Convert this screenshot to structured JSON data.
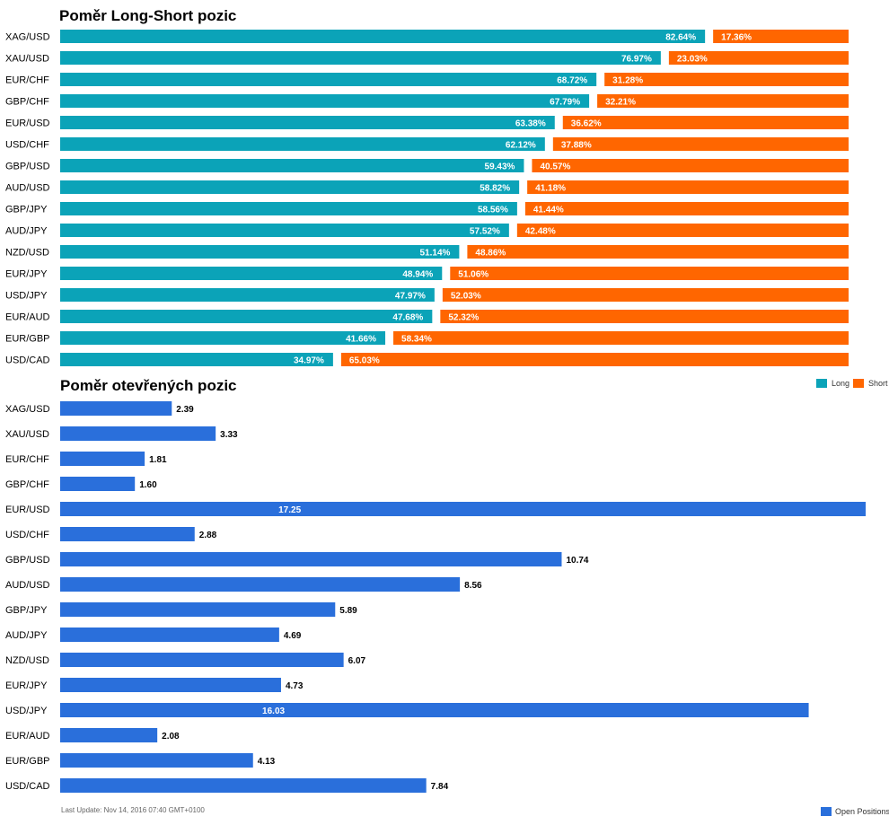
{
  "colors": {
    "long": "#0BA3B8",
    "short": "#FF6600",
    "open": "#2A6FDB"
  },
  "footer": "Last Update: Nov 14, 2016 07:40 GMT+0100",
  "chart_data": [
    {
      "type": "bar",
      "orientation": "horizontal",
      "stacked": true,
      "title": "Poměr Long-Short pozic",
      "categories": [
        "XAG/USD",
        "XAU/USD",
        "EUR/CHF",
        "GBP/CHF",
        "EUR/USD",
        "USD/CHF",
        "GBP/USD",
        "AUD/USD",
        "GBP/JPY",
        "AUD/JPY",
        "NZD/USD",
        "EUR/JPY",
        "USD/JPY",
        "EUR/AUD",
        "EUR/GBP",
        "USD/CAD"
      ],
      "series": [
        {
          "name": "Long",
          "values": [
            82.64,
            76.97,
            68.72,
            67.79,
            63.38,
            62.12,
            59.43,
            58.82,
            58.56,
            57.52,
            51.14,
            48.94,
            47.97,
            47.68,
            41.66,
            34.97
          ],
          "labels": [
            "82.64%",
            "76.97%",
            "68.72%",
            "67.79%",
            "63.38%",
            "62.12%",
            "59.43%",
            "58.82%",
            "58.56%",
            "57.52%",
            "51.14%",
            "48.94%",
            "47.97%",
            "47.68%",
            "41.66%",
            "34.97%"
          ]
        },
        {
          "name": "Short",
          "values": [
            17.36,
            23.03,
            31.28,
            32.21,
            36.62,
            37.88,
            40.57,
            41.18,
            41.44,
            42.48,
            48.86,
            51.06,
            52.03,
            52.32,
            58.34,
            65.03
          ],
          "labels": [
            "17.36%",
            "23.03%",
            "31.28%",
            "32.21%",
            "36.62%",
            "37.88%",
            "40.57%",
            "41.18%",
            "41.44%",
            "42.48%",
            "48.86%",
            "51.06%",
            "52.03%",
            "52.32%",
            "58.34%",
            "65.03%"
          ]
        }
      ],
      "xlim": [
        0,
        100
      ],
      "legend": "top-right"
    },
    {
      "type": "bar",
      "orientation": "horizontal",
      "title": "Poměr otevřených pozic",
      "categories": [
        "XAG/USD",
        "XAU/USD",
        "EUR/CHF",
        "GBP/CHF",
        "EUR/USD",
        "USD/CHF",
        "GBP/USD",
        "AUD/USD",
        "GBP/JPY",
        "AUD/JPY",
        "NZD/USD",
        "EUR/JPY",
        "USD/JPY",
        "EUR/AUD",
        "EUR/GBP",
        "USD/CAD"
      ],
      "series": [
        {
          "name": "Open Positions",
          "values": [
            2.39,
            3.33,
            1.81,
            1.6,
            17.25,
            2.88,
            10.74,
            8.56,
            5.89,
            4.69,
            6.07,
            4.73,
            16.03,
            2.08,
            4.13,
            7.84
          ],
          "labels": [
            "2.39",
            "3.33",
            "1.81",
            "1.60",
            "17.25",
            "2.88",
            "10.74",
            "8.56",
            "5.89",
            "4.69",
            "6.07",
            "4.73",
            "16.03",
            "2.08",
            "4.13",
            "7.84"
          ]
        }
      ],
      "xlim": [
        0,
        17.25
      ],
      "legend": "bottom-right"
    }
  ]
}
